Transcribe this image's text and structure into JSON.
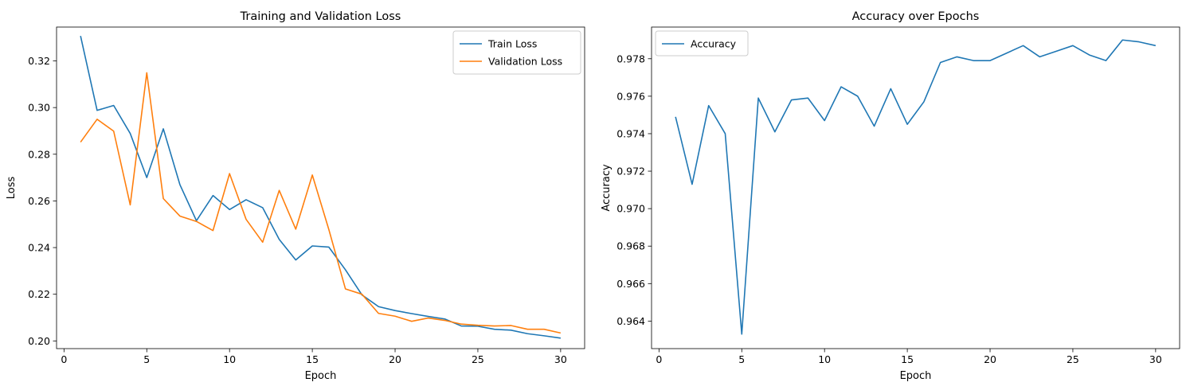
{
  "chart_data": [
    {
      "type": "line",
      "title": "Training and Validation Loss",
      "xlabel": "Epoch",
      "ylabel": "Loss",
      "xlim": [
        -0.45,
        31.45
      ],
      "ylim": [
        0.1967,
        0.3345
      ],
      "xticks": [
        0,
        5,
        10,
        15,
        20,
        25,
        30
      ],
      "yticks": [
        0.2,
        0.22,
        0.24,
        0.26,
        0.28,
        0.3,
        0.32
      ],
      "ytick_labels": [
        "0.20",
        "0.22",
        "0.24",
        "0.26",
        "0.28",
        "0.30",
        "0.32"
      ],
      "legend": "top-right",
      "grid": false,
      "x": [
        1,
        2,
        3,
        4,
        5,
        6,
        7,
        8,
        9,
        10,
        11,
        12,
        13,
        14,
        15,
        16,
        17,
        18,
        19,
        20,
        21,
        22,
        23,
        24,
        25,
        26,
        27,
        28,
        29,
        30
      ],
      "series": [
        {
          "name": "Train Loss",
          "color": "#1f77b4",
          "values": [
            0.3307,
            0.2988,
            0.3009,
            0.2889,
            0.27,
            0.2909,
            0.267,
            0.2515,
            0.2623,
            0.2563,
            0.2605,
            0.2571,
            0.2435,
            0.2347,
            0.2407,
            0.2402,
            0.2305,
            0.2197,
            0.2147,
            0.213,
            0.2117,
            0.2105,
            0.2094,
            0.2064,
            0.2063,
            0.205,
            0.2046,
            0.2031,
            0.2022,
            0.2012
          ]
        },
        {
          "name": "Validation Loss",
          "color": "#ff7f0e",
          "values": [
            0.2852,
            0.295,
            0.2899,
            0.2583,
            0.3149,
            0.261,
            0.2535,
            0.2512,
            0.2473,
            0.2717,
            0.2521,
            0.2423,
            0.2645,
            0.2479,
            0.2711,
            0.2477,
            0.2223,
            0.22,
            0.2118,
            0.2106,
            0.2084,
            0.2098,
            0.2088,
            0.2072,
            0.2067,
            0.2064,
            0.2066,
            0.205,
            0.205,
            0.2034
          ]
        }
      ]
    },
    {
      "type": "line",
      "title": "Accuracy over Epochs",
      "xlabel": "Epoch",
      "ylabel": "Accuracy",
      "xlim": [
        -0.45,
        31.45
      ],
      "ylim": [
        0.96253,
        0.97969
      ],
      "xticks": [
        0,
        5,
        10,
        15,
        20,
        25,
        30
      ],
      "yticks": [
        0.964,
        0.966,
        0.968,
        0.97,
        0.972,
        0.974,
        0.976,
        0.978
      ],
      "ytick_labels": [
        "0.964",
        "0.966",
        "0.968",
        "0.970",
        "0.972",
        "0.974",
        "0.976",
        "0.978"
      ],
      "legend": "top-left",
      "grid": false,
      "x": [
        1,
        2,
        3,
        4,
        5,
        6,
        7,
        8,
        9,
        10,
        11,
        12,
        13,
        14,
        15,
        16,
        17,
        18,
        19,
        20,
        21,
        22,
        23,
        24,
        25,
        26,
        27,
        28,
        29,
        30
      ],
      "series": [
        {
          "name": "Accuracy",
          "color": "#1f77b4",
          "values": [
            0.9749,
            0.9713,
            0.9755,
            0.974,
            0.9633,
            0.9759,
            0.9741,
            0.9758,
            0.9759,
            0.9747,
            0.9765,
            0.976,
            0.9744,
            0.9764,
            0.9745,
            0.9757,
            0.9778,
            0.9781,
            0.9779,
            0.9779,
            0.9783,
            0.9787,
            0.9781,
            0.9784,
            0.9787,
            0.9782,
            0.9779,
            0.979,
            0.9789,
            0.9787
          ]
        }
      ]
    }
  ]
}
